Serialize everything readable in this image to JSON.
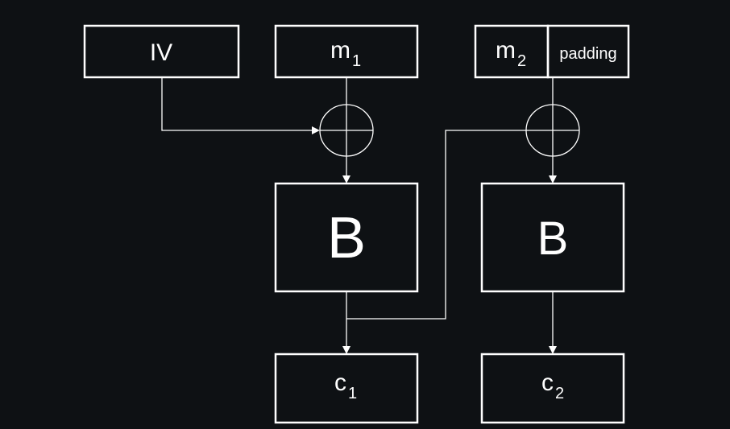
{
  "diagram": {
    "iv_label": "IV",
    "m1": {
      "base": "m",
      "sub": "1"
    },
    "m2": {
      "base": "m",
      "sub": "2"
    },
    "padding_label": "padding",
    "block1_label": "B",
    "block2_label": "B",
    "c1": {
      "base": "c",
      "sub": "1"
    },
    "c2": {
      "base": "c",
      "sub": "2"
    },
    "colors": {
      "background": "#0e1114",
      "stroke": "#ffffff"
    }
  }
}
